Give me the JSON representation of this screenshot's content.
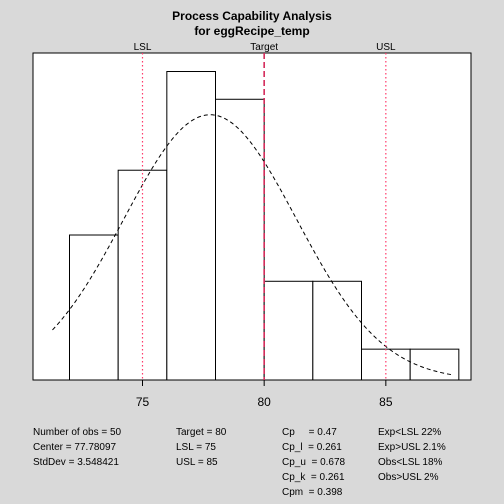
{
  "chart_data": {
    "type": "bar",
    "title": "Process Capability Analysis",
    "subtitle": "for eggRecipe_temp",
    "xlabel": "",
    "ylabel": "",
    "xlim": [
      70.5,
      88.5
    ],
    "ylim": [
      0,
      1
    ],
    "bins": [
      {
        "from": 72,
        "to": 74,
        "density": 0.47
      },
      {
        "from": 74,
        "to": 76,
        "density": 0.68
      },
      {
        "from": 76,
        "to": 78,
        "density": 1.0
      },
      {
        "from": 78,
        "to": 80,
        "density": 0.91
      },
      {
        "from": 80,
        "to": 82,
        "density": 0.32
      },
      {
        "from": 82,
        "to": 84,
        "density": 0.32
      },
      {
        "from": 84,
        "to": 86,
        "density": 0.1
      },
      {
        "from": 86,
        "to": 88,
        "density": 0.1
      }
    ],
    "x_ticks": [
      75,
      80,
      85
    ],
    "curve": {
      "mean": 77.78097,
      "sd": 3.548421,
      "peak": 0.86,
      "from": 71.3,
      "to": 87.7
    },
    "spec_lines": [
      {
        "label": "LSL",
        "value": 75,
        "color": "#ff3b6b",
        "dash": "dots"
      },
      {
        "label": "Target",
        "value": 80,
        "color": "#d42a5a",
        "dash": "dashes"
      },
      {
        "label": "USL",
        "value": 85,
        "color": "#ff3b6b",
        "dash": "dots"
      }
    ],
    "grid": false
  },
  "stats": {
    "col1": [
      "Number of obs = 50",
      "Center = 77.78097",
      "StdDev = 3.548421"
    ],
    "col2": [
      "Target = 80",
      "LSL = 75",
      "USL = 85"
    ],
    "col3": [
      "Cp     = 0.47",
      "Cp_l  = 0.261",
      "Cp_u  = 0.678",
      "Cp_k  = 0.261",
      "Cpm  = 0.398"
    ],
    "col4": [
      "Exp<LSL 22%",
      "Exp>USL 2.1%",
      "Obs<LSL 18%",
      "Obs>USL 2%"
    ]
  },
  "colors": {
    "background": "#d9d9d9",
    "plot": "#ffffff",
    "axis": "#000000"
  }
}
